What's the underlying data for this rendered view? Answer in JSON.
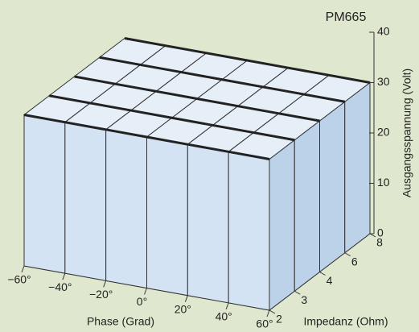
{
  "chart_data": {
    "type": "surface3d",
    "title": "PM665",
    "x_label": "Phase (Grad)",
    "y_label": "Impedanz (Ohm)",
    "z_label": "Ausgangsspannung (Volt)",
    "x_categories": [
      "−60°",
      "−40°",
      "−20°",
      "0°",
      "20°",
      "40°",
      "60°"
    ],
    "y_categories": [
      "2",
      "3",
      "4",
      "6",
      "8"
    ],
    "values": [
      [
        30,
        30,
        30,
        30,
        30,
        30,
        30
      ],
      [
        30,
        30,
        30,
        30,
        30,
        30,
        30
      ],
      [
        30,
        30,
        30,
        30,
        30,
        30,
        30
      ],
      [
        30,
        30,
        30,
        30,
        30,
        30,
        30
      ],
      [
        30,
        30,
        30,
        30,
        30,
        30,
        30
      ]
    ],
    "zlim": [
      0,
      40
    ],
    "zticks": [
      0,
      10,
      20,
      30,
      40
    ],
    "colors": {
      "top": "#e6eef8",
      "front": "#d3e3f3",
      "side": "#bcd2e9"
    }
  }
}
